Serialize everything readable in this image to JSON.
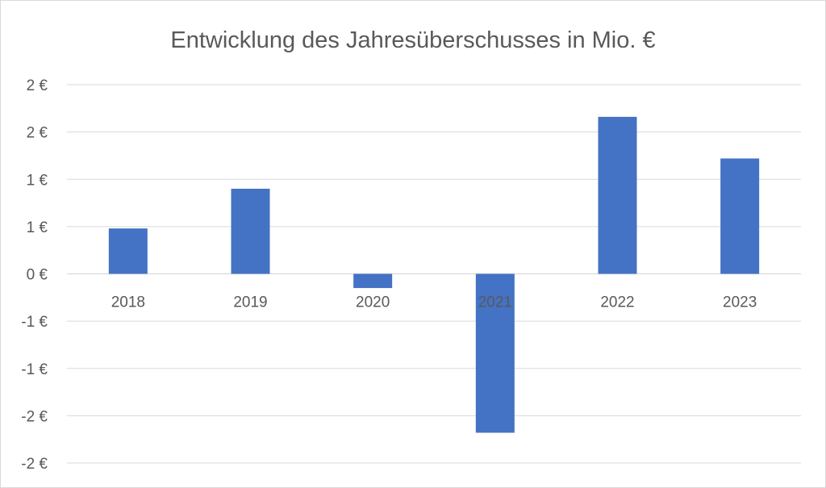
{
  "chart_data": {
    "type": "bar",
    "title": "Entwicklung des Jahresüberschusses in Mio. €",
    "xlabel": "",
    "ylabel": "",
    "categories": [
      "2018",
      "2019",
      "2020",
      "2021",
      "2022",
      "2023"
    ],
    "values": [
      0.48,
      0.9,
      -0.15,
      -1.68,
      1.66,
      1.22
    ],
    "ylim": [
      -2,
      2
    ],
    "y_ticks": [
      {
        "value": 2.0,
        "label": "2 €"
      },
      {
        "value": 1.5,
        "label": "2 €"
      },
      {
        "value": 1.0,
        "label": "1 €"
      },
      {
        "value": 0.5,
        "label": "1 €"
      },
      {
        "value": 0.0,
        "label": "0 €"
      },
      {
        "value": -0.5,
        "label": "-1 €"
      },
      {
        "value": -1.0,
        "label": "-1 €"
      },
      {
        "value": -1.5,
        "label": "-2 €"
      },
      {
        "value": -2.0,
        "label": "-2 €"
      }
    ],
    "grid": true,
    "legend": "none",
    "bar_color": "#4472C4"
  }
}
